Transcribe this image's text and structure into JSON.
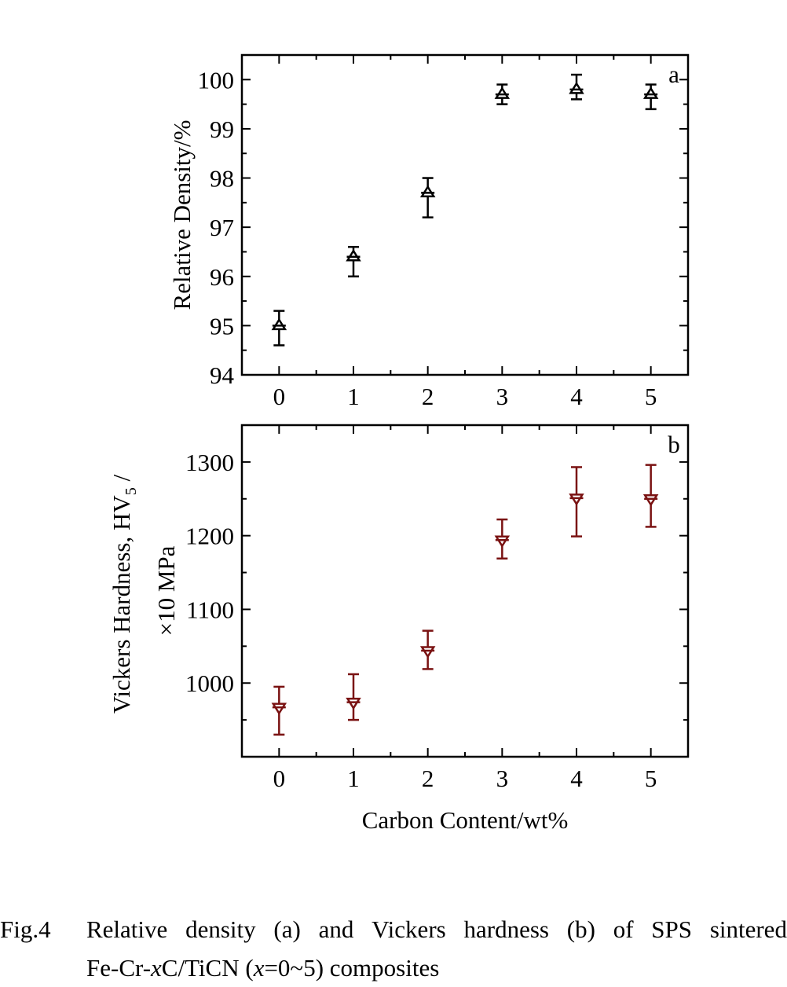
{
  "chart_data": [
    {
      "type": "scatter",
      "panel_label": "a",
      "xlabel": "",
      "ylabel": "Relative Density/%",
      "xlim": [
        -0.5,
        5.5
      ],
      "ylim": [
        94,
        100.5
      ],
      "xticks": [
        "0",
        "1",
        "2",
        "3",
        "4",
        "5"
      ],
      "yticks": [
        "94",
        "95",
        "96",
        "97",
        "98",
        "99",
        "100"
      ],
      "marker": "up-triangle",
      "color": "#000000",
      "series": [
        {
          "x": [
            0,
            1,
            2,
            3,
            4,
            5
          ],
          "values": [
            95.0,
            96.4,
            97.7,
            99.7,
            99.8,
            99.7
          ],
          "err_low": [
            94.6,
            96.0,
            97.2,
            99.5,
            99.6,
            99.4
          ],
          "err_high": [
            95.3,
            96.6,
            98.0,
            99.9,
            100.1,
            99.9
          ]
        }
      ]
    },
    {
      "type": "scatter",
      "panel_label": "b",
      "xlabel": "Carbon Content/wt%",
      "ylabel_line1": "Vickers Hardness, HV",
      "ylabel_sub": "5",
      "ylabel_suffix": " /",
      "ylabel_line2": "×10 MPa",
      "xlim": [
        -0.5,
        5.5
      ],
      "ylim": [
        900,
        1350
      ],
      "xticks": [
        "0",
        "1",
        "2",
        "3",
        "4",
        "5"
      ],
      "yticks": [
        "1000",
        "1100",
        "1200",
        "1300"
      ],
      "ytick_values": [
        1000,
        1100,
        1200,
        1300
      ],
      "marker": "down-triangle",
      "color": "#7a1212",
      "series": [
        {
          "x": [
            0,
            1,
            2,
            3,
            4,
            5
          ],
          "values": [
            967,
            974,
            1044,
            1194,
            1251,
            1250
          ],
          "err_low": [
            930,
            950,
            1019,
            1169,
            1199,
            1212
          ],
          "err_high": [
            995,
            1012,
            1071,
            1222,
            1293,
            1296
          ]
        }
      ]
    }
  ],
  "caption": {
    "number": "Fig.4",
    "words_line1": [
      "Relative",
      "density",
      "(a)",
      "and",
      "Vickers",
      "hardness",
      "(b)",
      "of",
      "SPS",
      "sintered"
    ],
    "line2_part1": "Fe-Cr-",
    "line2_italic1": "x",
    "line2_part2": "C/TiCN (",
    "line2_italic2": "x",
    "line2_part3": "=0~5) composites"
  }
}
